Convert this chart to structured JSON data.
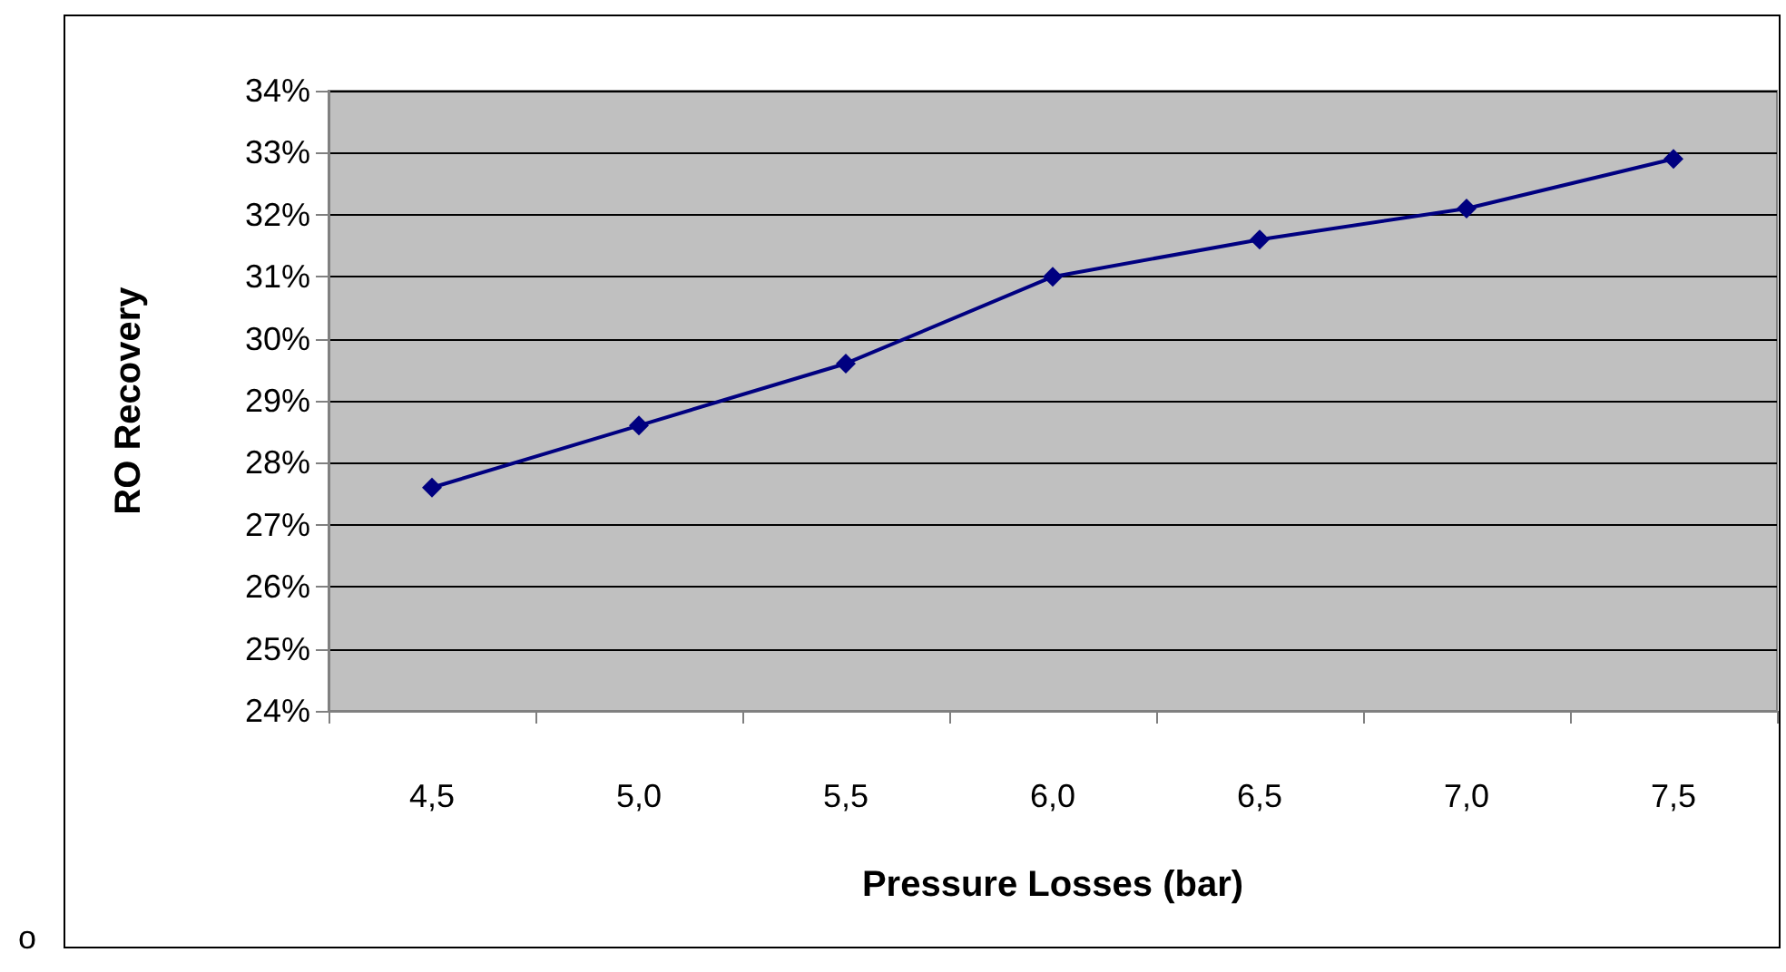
{
  "chart_data": {
    "type": "line",
    "xlabel": "Pressure Losses (bar)",
    "ylabel": "RO Recovery",
    "categories": [
      "4,5",
      "5,0",
      "5,5",
      "6,0",
      "6,5",
      "7,0",
      "7,5"
    ],
    "series": [
      {
        "color": "#000080",
        "values": [
          27.6,
          28.6,
          29.6,
          31.0,
          31.6,
          32.1,
          32.9
        ]
      }
    ],
    "ylim": [
      24,
      34
    ],
    "yticks": [
      {
        "value": 24,
        "label": "24%"
      },
      {
        "value": 25,
        "label": "25%"
      },
      {
        "value": 26,
        "label": "26%"
      },
      {
        "value": 27,
        "label": "27%"
      },
      {
        "value": 28,
        "label": "28%"
      },
      {
        "value": 29,
        "label": "29%"
      },
      {
        "value": 30,
        "label": "30%"
      },
      {
        "value": 31,
        "label": "31%"
      },
      {
        "value": 32,
        "label": "32%"
      },
      {
        "value": 33,
        "label": "33%"
      },
      {
        "value": 34,
        "label": "34%"
      }
    ],
    "grid": "y",
    "marker": "diamond",
    "line_style": "solid",
    "annotations": [
      "o"
    ]
  }
}
